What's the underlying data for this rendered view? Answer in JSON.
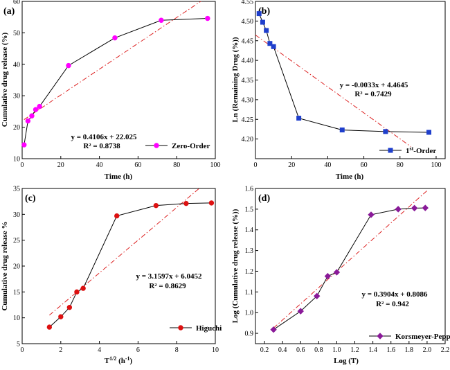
{
  "figure_panels": [
    "(a)",
    "(b)",
    "(c)",
    "(d)"
  ],
  "chart_data": [
    {
      "type": "scatter",
      "panel_label": "(a)",
      "model": "Zero-Order",
      "xlabel": "Time (h)",
      "ylabel": "Cumulative drug release (%)",
      "xlim": [
        0,
        100
      ],
      "ylim": [
        10,
        60
      ],
      "xticks": [
        0,
        20,
        40,
        60,
        80,
        100
      ],
      "yticks": [
        10,
        20,
        30,
        40,
        50,
        60
      ],
      "series": [
        {
          "name": "Zero-Order",
          "color": "#ff00ff",
          "marker": "circle",
          "x": [
            1,
            3,
            5,
            7,
            9,
            24,
            48,
            72,
            96
          ],
          "y": [
            14.4,
            22.0,
            23.6,
            25.6,
            26.6,
            39.6,
            48.4,
            54.0,
            54.6
          ]
        }
      ],
      "fit": {
        "slope": 0.4106,
        "intercept": 22.025,
        "x_range": [
          1,
          96
        ],
        "color": "#dd2222"
      },
      "equation": "y = 0.4106x + 22.025",
      "r2": "R² = 0.8738",
      "legend": "Zero-Order"
    },
    {
      "type": "scatter",
      "panel_label": "(b)",
      "model": "1st-Order",
      "xlabel": "Time (h)",
      "ylabel": "Ln (Remaining Drug (%))",
      "xlim": [
        0,
        105
      ],
      "ylim": [
        4.15,
        4.55
      ],
      "xticks": [
        0,
        20,
        40,
        60,
        80,
        100
      ],
      "yticks": [
        4.2,
        4.25,
        4.3,
        4.35,
        4.4,
        4.45,
        4.5,
        4.55
      ],
      "series": [
        {
          "name": "1st-Order",
          "color": "#1f3fcc",
          "marker": "square",
          "x": [
            2,
            4,
            6,
            8,
            10,
            24,
            48,
            72,
            96
          ],
          "y": [
            4.519,
            4.497,
            4.476,
            4.443,
            4.435,
            4.253,
            4.223,
            4.219,
            4.217
          ]
        }
      ],
      "fit": {
        "slope": -0.0033,
        "intercept": 4.4645,
        "x_range": [
          0,
          86
        ],
        "color": "#dd2222"
      },
      "equation": "y = -0.0033x + 4.4645",
      "r2": "R² = 0.7429",
      "legend": "1st-Order"
    },
    {
      "type": "scatter",
      "panel_label": "(c)",
      "model": "Higuchi",
      "xlabel": "T1/2 (h-1)",
      "ylabel": "Cumulative drug release %",
      "xlim": [
        0,
        10
      ],
      "ylim": [
        5,
        35
      ],
      "xticks": [
        0,
        2,
        4,
        6,
        8,
        10
      ],
      "yticks": [
        5,
        10,
        15,
        20,
        25,
        30,
        35
      ],
      "series": [
        {
          "name": "Higuchi",
          "color": "#dd1111",
          "marker": "circle",
          "x": [
            1.41,
            2.0,
            2.45,
            2.83,
            3.16,
            4.9,
            6.93,
            8.49,
            9.8
          ],
          "y": [
            8.2,
            10.2,
            12.0,
            15.0,
            15.7,
            29.7,
            31.7,
            32.1,
            32.2
          ]
        }
      ],
      "fit": {
        "slope": 3.1597,
        "intercept": 6.0452,
        "x_range": [
          1.41,
          9.2
        ],
        "color": "#dd2222"
      },
      "equation": "y = 3.1597x + 6.0452",
      "r2": "R² = 0.8629",
      "legend": "Higuchi"
    },
    {
      "type": "scatter",
      "panel_label": "(d)",
      "model": "Korsmeyer-Peppas",
      "xlabel": "Log (T)",
      "ylabel": "Log (Cumulative drug release (%))",
      "xlim": [
        0.1,
        2.2
      ],
      "ylim": [
        0.85,
        1.6
      ],
      "xticks": [
        0.2,
        0.4,
        0.6,
        0.8,
        1.0,
        1.2,
        1.4,
        1.6,
        1.8,
        2.0,
        2.2
      ],
      "yticks": [
        0.9,
        1.0,
        1.1,
        1.2,
        1.3,
        1.4,
        1.5,
        1.6
      ],
      "series": [
        {
          "name": "Korsmeyer-Peppas",
          "color": "#8a1a99",
          "marker": "diamond",
          "x": [
            0.3,
            0.6,
            0.78,
            0.9,
            1.0,
            1.38,
            1.68,
            1.86,
            1.98
          ],
          "y": [
            0.918,
            1.007,
            1.08,
            1.176,
            1.195,
            1.473,
            1.5,
            1.505,
            1.506
          ]
        }
      ],
      "fit": {
        "slope": 0.3904,
        "intercept": 0.8086,
        "x_range": [
          0.3,
          2.0
        ],
        "color": "#dd2222"
      },
      "equation": "y = 0.3904x + 0.8086",
      "r2": "R² = 0.942",
      "legend": "Korsmeyer-Peppas"
    }
  ]
}
